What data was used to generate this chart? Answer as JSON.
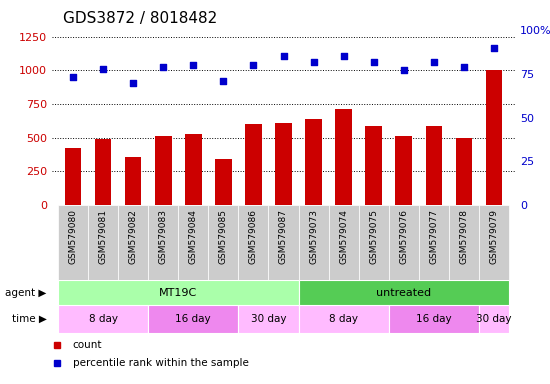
{
  "title": "GDS3872 / 8018482",
  "samples": [
    "GSM579080",
    "GSM579081",
    "GSM579082",
    "GSM579083",
    "GSM579084",
    "GSM579085",
    "GSM579086",
    "GSM579087",
    "GSM579073",
    "GSM579074",
    "GSM579075",
    "GSM579076",
    "GSM579077",
    "GSM579078",
    "GSM579079"
  ],
  "counts": [
    420,
    490,
    355,
    515,
    530,
    345,
    600,
    610,
    640,
    710,
    590,
    510,
    590,
    500,
    1000
  ],
  "percentile_ranks": [
    73,
    78,
    70,
    79,
    80,
    71,
    80,
    85,
    82,
    85,
    82,
    77,
    82,
    79,
    90
  ],
  "count_scale": [
    0,
    250,
    500,
    750,
    1000,
    1250
  ],
  "percentile_scale": [
    0,
    25,
    50,
    75,
    100
  ],
  "ylim_left": [
    0,
    1300
  ],
  "ylim_right": [
    0,
    100
  ],
  "bar_color": "#cc0000",
  "dot_color": "#0000cc",
  "agent_groups": [
    {
      "label": "MT19C",
      "start": 0,
      "end": 8,
      "color": "#aaffaa"
    },
    {
      "label": "untreated",
      "start": 8,
      "end": 15,
      "color": "#55cc55"
    }
  ],
  "time_groups": [
    {
      "label": "8 day",
      "start": 0,
      "end": 3,
      "color": "#ffbbff"
    },
    {
      "label": "16 day",
      "start": 3,
      "end": 6,
      "color": "#ee88ee"
    },
    {
      "label": "30 day",
      "start": 6,
      "end": 8,
      "color": "#ffbbff"
    },
    {
      "label": "8 day",
      "start": 8,
      "end": 11,
      "color": "#ffbbff"
    },
    {
      "label": "16 day",
      "start": 11,
      "end": 14,
      "color": "#ee88ee"
    },
    {
      "label": "30 day",
      "start": 14,
      "end": 15,
      "color": "#ffbbff"
    }
  ],
  "background_color": "#ffffff",
  "tick_label_color_left": "#cc0000",
  "tick_label_color_right": "#0000cc",
  "title_fontsize": 11,
  "tick_fontsize": 8,
  "bar_label_fontsize": 7,
  "row_label_fontsize": 8
}
